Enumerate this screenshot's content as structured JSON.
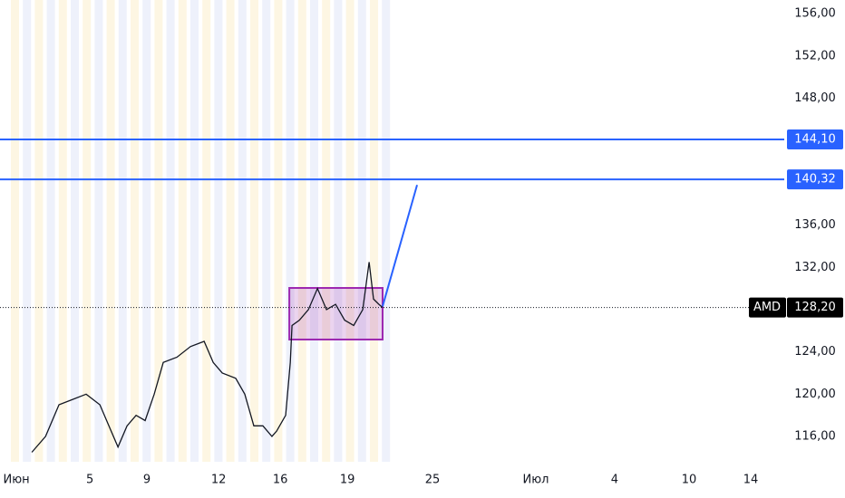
{
  "chart_data": {
    "type": "line",
    "x": [
      0.63,
      1.19,
      1.74,
      2.3,
      2.85,
      3.41,
      3.78,
      4.15,
      4.52,
      4.89,
      5.26,
      5.63,
      6,
      6.56,
      7.11,
      7.67,
      8.04,
      8.41,
      8.96,
      9.33,
      9.7,
      10.07,
      10.44,
      10.63,
      11,
      11.19,
      11.26,
      11.56,
      11.93,
      12.3,
      12.67,
      13.04,
      13.41,
      13.78,
      14.15,
      14.41,
      14.59,
      14.81,
      14.96
    ],
    "series": [
      {
        "name": "AMD",
        "color": "#131722",
        "values": [
          114.5,
          116,
          119,
          119.5,
          120,
          119,
          117,
          115,
          117,
          118,
          117.5,
          120,
          123,
          123.5,
          124.5,
          125,
          123,
          122,
          121.5,
          120,
          117,
          117,
          116,
          116.5,
          118,
          123,
          126.5,
          127,
          128,
          130,
          128,
          128.5,
          127,
          126.5,
          128,
          132.5,
          129,
          128.5,
          128.2
        ]
      }
    ],
    "last_price": {
      "value": 128.2,
      "label": "128,20"
    },
    "levels": [
      {
        "value": 144.1,
        "label": "144,10",
        "color": "#2962ff"
      },
      {
        "value": 140.32,
        "label": "140,32",
        "color": "#2962ff"
      }
    ],
    "box": {
      "x": [
        11.15,
        14.96
      ],
      "y": [
        125.17,
        130.05
      ],
      "color": "#9c27b0"
    },
    "trend": {
      "x": [
        14.96,
        16.37
      ],
      "y": [
        128.3,
        139.8
      ],
      "color": "#2962ff"
    },
    "xlim": [
      -0.67,
      31.37
    ],
    "ylim": [
      113.6,
      157.3
    ],
    "xticks": [
      {
        "value": 0,
        "label": "Июн"
      },
      {
        "value": 3,
        "label": "5"
      },
      {
        "value": 5.33,
        "label": "9"
      },
      {
        "value": 8.26,
        "label": "12"
      },
      {
        "value": 10.78,
        "label": "16"
      },
      {
        "value": 13.52,
        "label": "19"
      },
      {
        "value": 17,
        "label": "25"
      },
      {
        "value": 21.22,
        "label": "Июл"
      },
      {
        "value": 24.44,
        "label": "4"
      },
      {
        "value": 27.48,
        "label": "10"
      },
      {
        "value": 30,
        "label": "14"
      }
    ],
    "yticks": [
      {
        "value": 116,
        "label": "116,00"
      },
      {
        "value": 120,
        "label": "120,00"
      },
      {
        "value": 124,
        "label": "124,00"
      },
      {
        "value": 132,
        "label": "132,00"
      },
      {
        "value": 136,
        "label": "136,00"
      },
      {
        "value": 148,
        "label": "148,00"
      },
      {
        "value": 152,
        "label": "152,00"
      },
      {
        "value": 156,
        "label": "156,00"
      }
    ]
  }
}
